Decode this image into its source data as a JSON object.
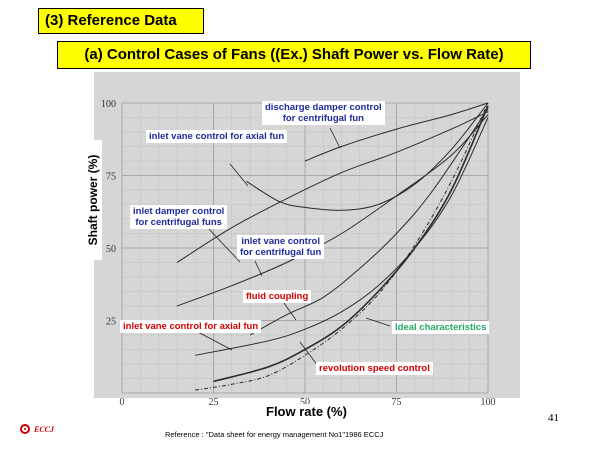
{
  "header": {
    "section_title": "(3) Reference Data",
    "subtitle": "(a) Control Cases of Fans ((Ex.) Shaft Power vs. Flow Rate)"
  },
  "chart_data": {
    "type": "line",
    "xlabel": "Flow rate  (%)",
    "ylabel": "Shaft power  (%)",
    "xlim": [
      0,
      100
    ],
    "ylim": [
      0,
      100
    ],
    "x_ticks": [
      "0",
      "25",
      "50",
      "75",
      "100"
    ],
    "y_ticks": [
      "25",
      "50",
      "75",
      "100"
    ],
    "grid": true,
    "series": [
      {
        "name": "discharge damper control for centrifugal fun",
        "x": [
          50,
          60,
          75,
          90,
          100
        ],
        "y": [
          80,
          85,
          91,
          96,
          100
        ]
      },
      {
        "name": "inlet vane control for axial fun",
        "x": [
          34,
          43,
          50,
          60,
          70,
          80,
          90,
          100
        ],
        "y": [
          73,
          66,
          64,
          63,
          65,
          72,
          84,
          100
        ]
      },
      {
        "name": "inlet damper control for centrifugal funs",
        "x": [
          15,
          30,
          45,
          60,
          75,
          90,
          100
        ],
        "y": [
          45,
          57,
          67,
          76,
          83,
          91,
          97
        ]
      },
      {
        "name": "inlet vane control for centrifugal fun",
        "x": [
          15,
          30,
          45,
          60,
          75,
          90,
          100
        ],
        "y": [
          30,
          37,
          45,
          55,
          68,
          82,
          96
        ]
      },
      {
        "name": "fluid coupling",
        "x": [
          20,
          40,
          50,
          60,
          70,
          80,
          90,
          100
        ],
        "y": [
          13,
          18,
          22,
          28,
          37,
          50,
          68,
          95
        ]
      },
      {
        "name": "inlet vane control for axial fun",
        "x": [
          35,
          45,
          55,
          65,
          75,
          85,
          100
        ],
        "y": [
          20,
          27,
          33,
          43,
          55,
          70,
          98
        ]
      },
      {
        "name": "revolution speed control",
        "x": [
          25,
          40,
          50,
          60,
          70,
          80,
          90,
          100
        ],
        "y": [
          4,
          9,
          15,
          23,
          35,
          50,
          70,
          99
        ]
      },
      {
        "name": "Ideal characteristics",
        "x": [
          20,
          30,
          40,
          50,
          60,
          70,
          80,
          90,
          100
        ],
        "y": [
          1,
          3,
          6,
          13,
          22,
          34,
          51,
          73,
          100
        ]
      }
    ]
  },
  "annotations": {
    "discharge_damper": "discharge damper control\nfor centrifugal fun",
    "inlet_vane_axial_top": "inlet  vane  control for axial fun",
    "inlet_damper": "inlet damper control\nfor centrifugal funs",
    "inlet_vane_centrifugal": "inlet  vane  control\nfor centrifugal fun",
    "fluid_coupling": "fluid coupling",
    "inlet_vane_axial_bottom": "inlet  vane  control for axial fun",
    "ideal": "Ideal characteristics",
    "revolution": "revolution speed  control"
  },
  "footer": {
    "page_number": "41",
    "reference": "Reference : \"Data sheet for energy management  No1\"1986  ECCJ",
    "logo_text": "ECCJ"
  },
  "colors": {
    "title_bg": "#ffff00",
    "blue_label": "#1f2a9c",
    "red_label": "#d00000",
    "green_label": "#22aa66",
    "photo_bg": "#d6d6d6"
  }
}
